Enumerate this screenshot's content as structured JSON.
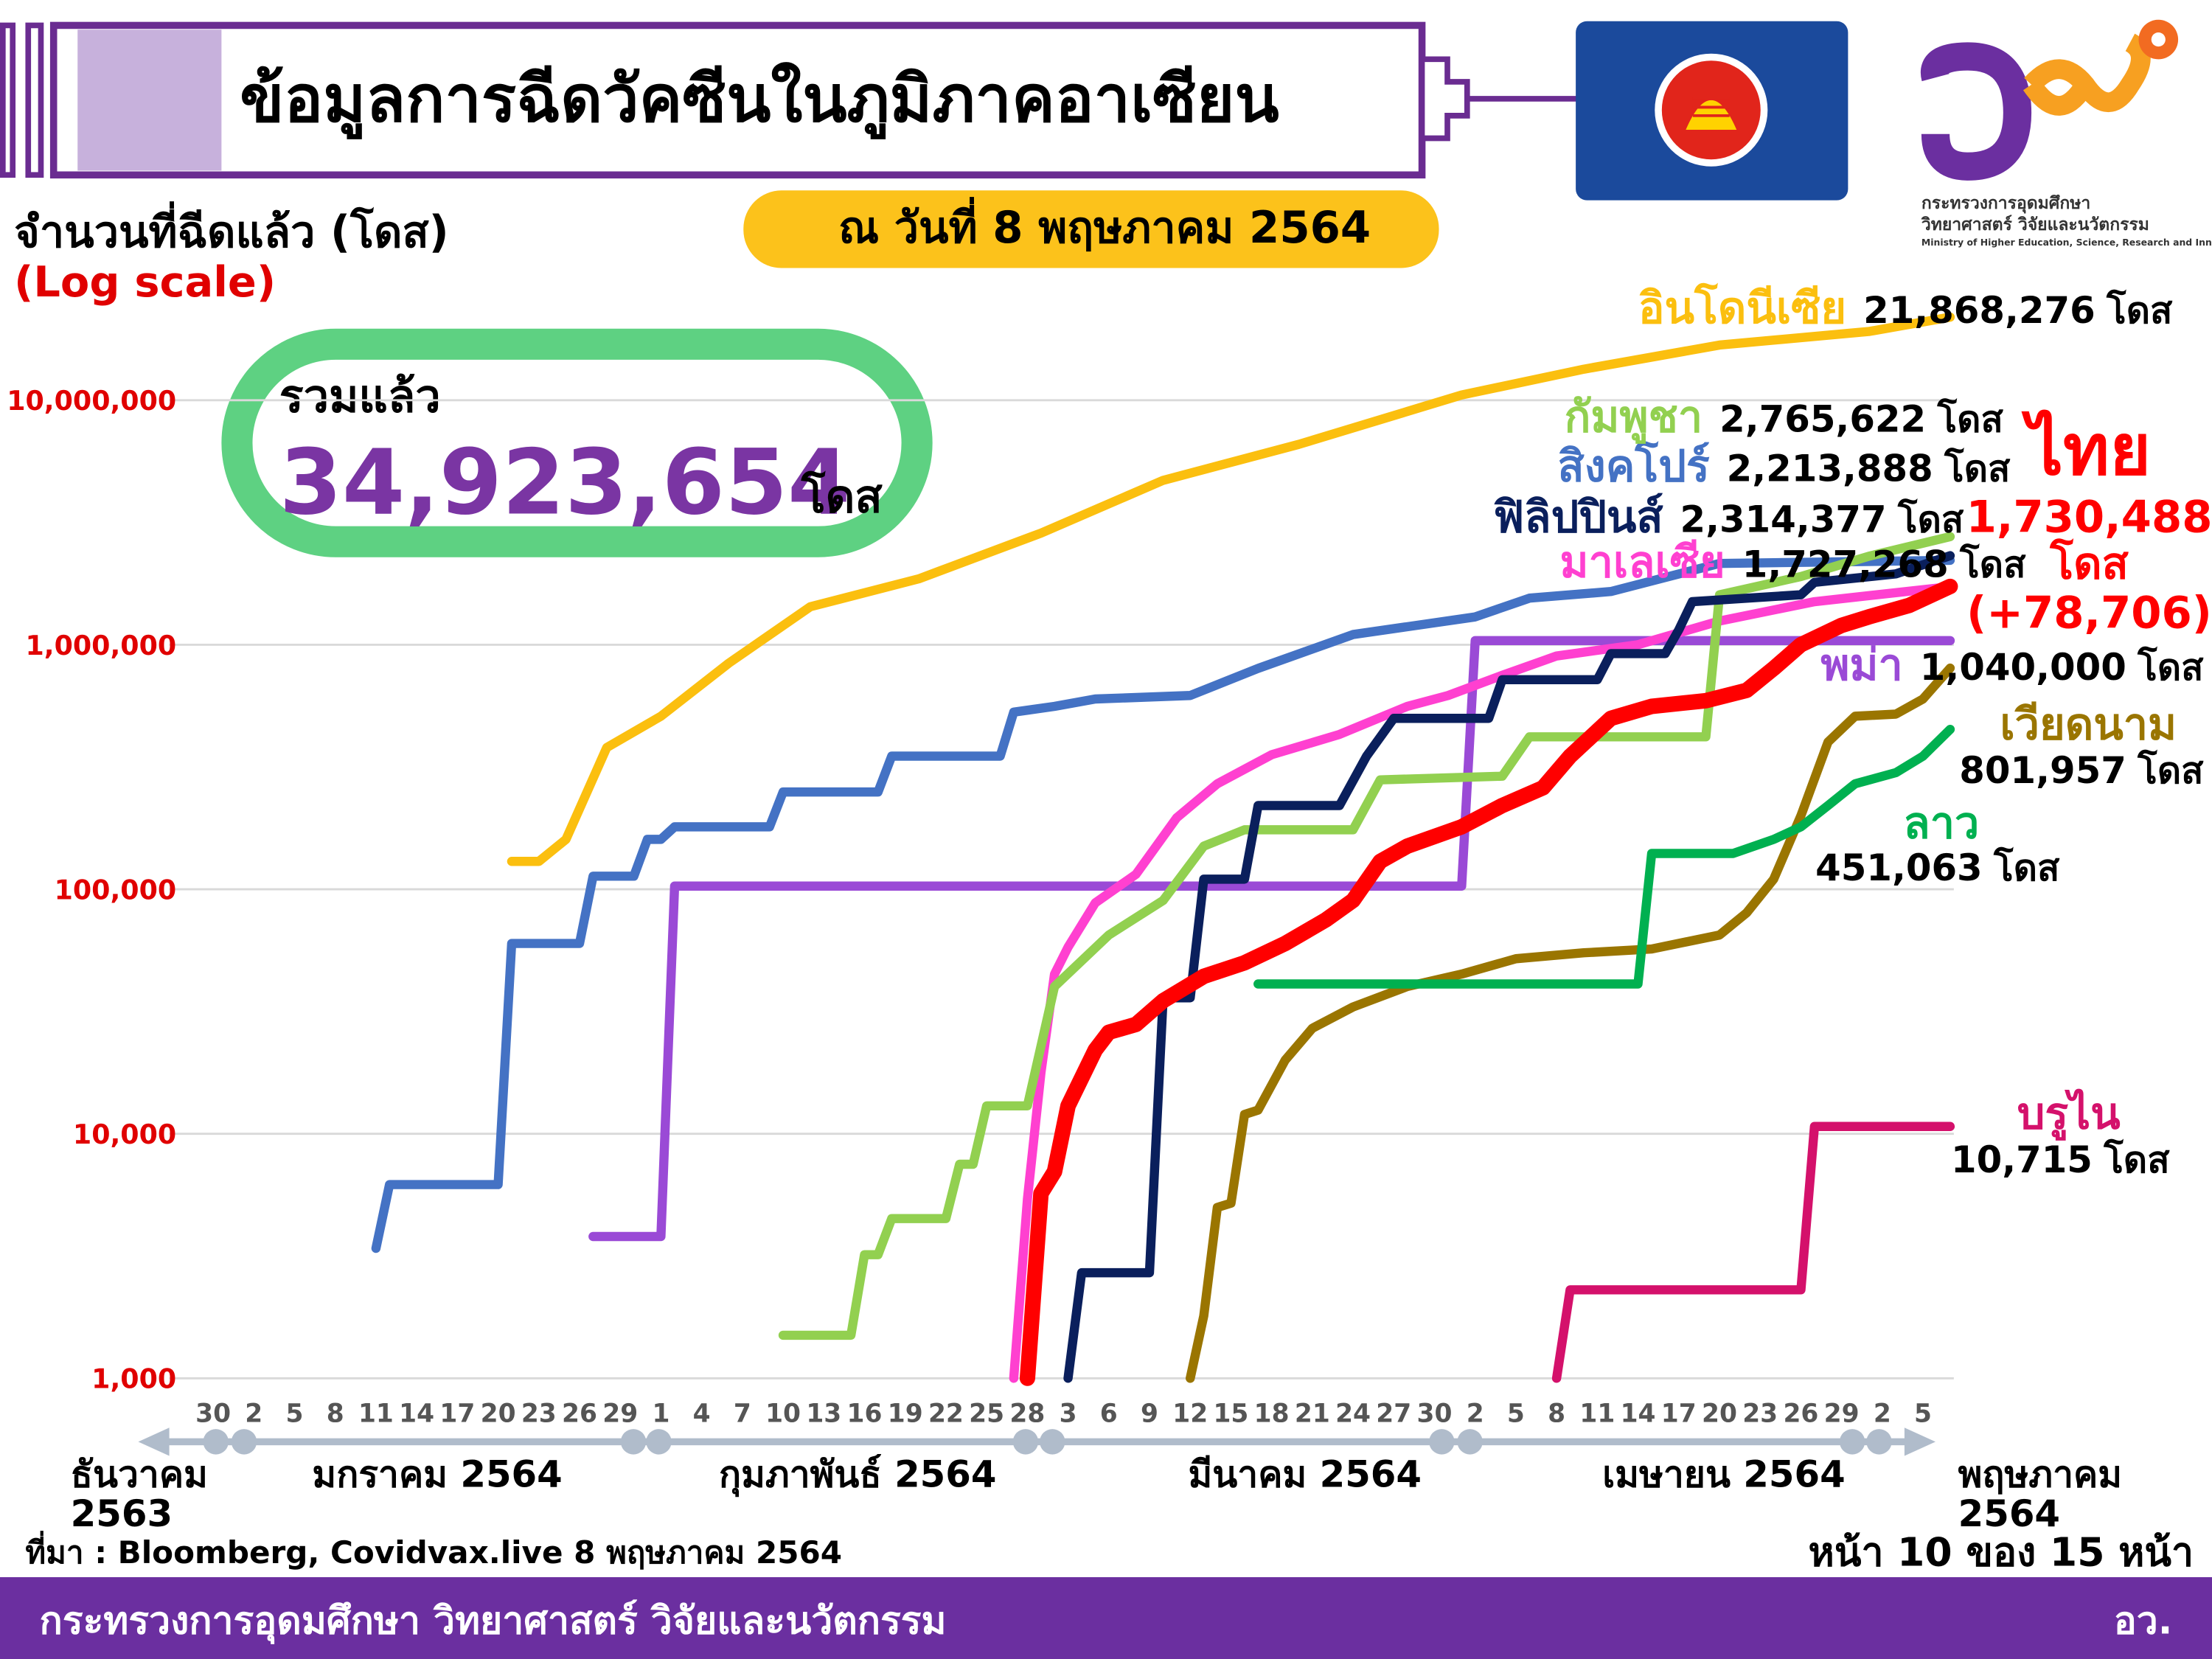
{
  "header": {
    "title": "ข้อมูลการฉีดวัคซีนในภูมิภาคอาเซียน",
    "date": "ณ วันที่ 8 พฤษภาคม 2564",
    "logo_lines": [
      "กระทรวงการอุดมศึกษา",
      "วิทยาศาสตร์ วิจัยและนวัตกรรม",
      "Ministry of Higher Education, Science, Research and Innovation"
    ]
  },
  "summary": {
    "label": "รวมแล้ว",
    "value_label": "34,923,654",
    "unit": "โดส"
  },
  "footer": {
    "source": "ที่มา : Bloomberg, Covidvax.live 8 พฤษภาคม 2564",
    "page": "หน้า 10 ของ 15 หน้า",
    "ministry": "กระทรวงการอุดมศึกษา วิทยาศาสตร์ วิจัยและนวัตกรรม",
    "short": "อว."
  },
  "chart_data": {
    "type": "line",
    "y_label": "จำนวนที่ฉีดแล้ว (โดส)",
    "scale_note": "(Log scale)",
    "log_scale": true,
    "grid": true,
    "unit": "โดส",
    "ylim": [
      1000,
      30000000
    ],
    "yticks": [
      {
        "value": 1000,
        "label": "1,000"
      },
      {
        "value": 10000,
        "label": "10,000"
      },
      {
        "value": 100000,
        "label": "100,000"
      },
      {
        "value": 1000000,
        "label": "1,000,000"
      },
      {
        "value": 10000000,
        "label": "10,000,000"
      }
    ],
    "xlim": [
      "2020-12-25",
      "2021-05-08"
    ],
    "xticks": [
      {
        "value": "2020-12-30",
        "label": "30"
      },
      {
        "value": "2021-01-02",
        "label": "2"
      },
      {
        "value": "2021-01-05",
        "label": "5"
      },
      {
        "value": "2021-01-08",
        "label": "8"
      },
      {
        "value": "2021-01-11",
        "label": "11"
      },
      {
        "value": "2021-01-14",
        "label": "14"
      },
      {
        "value": "2021-01-17",
        "label": "17"
      },
      {
        "value": "2021-01-20",
        "label": "20"
      },
      {
        "value": "2021-01-23",
        "label": "23"
      },
      {
        "value": "2021-01-26",
        "label": "26"
      },
      {
        "value": "2021-01-29",
        "label": "29"
      },
      {
        "value": "2021-02-01",
        "label": "1"
      },
      {
        "value": "2021-02-04",
        "label": "4"
      },
      {
        "value": "2021-02-07",
        "label": "7"
      },
      {
        "value": "2021-02-10",
        "label": "10"
      },
      {
        "value": "2021-02-13",
        "label": "13"
      },
      {
        "value": "2021-02-16",
        "label": "16"
      },
      {
        "value": "2021-02-19",
        "label": "19"
      },
      {
        "value": "2021-02-22",
        "label": "22"
      },
      {
        "value": "2021-02-25",
        "label": "25"
      },
      {
        "value": "2021-02-28",
        "label": "28"
      },
      {
        "value": "2021-03-03",
        "label": "3"
      },
      {
        "value": "2021-03-06",
        "label": "6"
      },
      {
        "value": "2021-03-09",
        "label": "9"
      },
      {
        "value": "2021-03-12",
        "label": "12"
      },
      {
        "value": "2021-03-15",
        "label": "15"
      },
      {
        "value": "2021-03-18",
        "label": "18"
      },
      {
        "value": "2021-03-21",
        "label": "21"
      },
      {
        "value": "2021-03-24",
        "label": "24"
      },
      {
        "value": "2021-03-27",
        "label": "27"
      },
      {
        "value": "2021-03-30",
        "label": "30"
      },
      {
        "value": "2021-04-02",
        "label": "2"
      },
      {
        "value": "2021-04-05",
        "label": "5"
      },
      {
        "value": "2021-04-08",
        "label": "8"
      },
      {
        "value": "2021-04-11",
        "label": "11"
      },
      {
        "value": "2021-04-14",
        "label": "14"
      },
      {
        "value": "2021-04-17",
        "label": "17"
      },
      {
        "value": "2021-04-20",
        "label": "20"
      },
      {
        "value": "2021-04-23",
        "label": "23"
      },
      {
        "value": "2021-04-26",
        "label": "26"
      },
      {
        "value": "2021-04-29",
        "label": "29"
      },
      {
        "value": "2021-05-02",
        "label": "2"
      },
      {
        "value": "2021-05-05",
        "label": "5"
      }
    ],
    "months": [
      [
        "ธันวาคม",
        "2563"
      ],
      [
        "มกราคม 2564"
      ],
      [
        "กุมภาพันธ์ 2564"
      ],
      [
        "มีนาคม 2564"
      ],
      [
        "เมษายน 2564"
      ],
      [
        "พฤษภาคม",
        "2564"
      ]
    ],
    "series": [
      {
        "name": "อินโดนีเซีย",
        "color": "#fbbf0f",
        "x": [
          "2021-01-21",
          "2021-01-23",
          "2021-01-25",
          "2021-01-28",
          "2021-02-01",
          "2021-02-06",
          "2021-02-12",
          "2021-02-20",
          "2021-03-01",
          "2021-03-10",
          "2021-03-20",
          "2021-04-01",
          "2021-04-10",
          "2021-04-20",
          "2021-05-01",
          "2021-05-07"
        ],
        "values": [
          130000,
          130000,
          160000,
          380000,
          510000,
          840000,
          1430000,
          1860000,
          2860000,
          4700000,
          6600000,
          10500000,
          13400000,
          16800000,
          19100000,
          21868276
        ],
        "value_labels": [
          null,
          null,
          null,
          null,
          null,
          null,
          null,
          null,
          null,
          null,
          null,
          null,
          null,
          null,
          null,
          "21,868,276"
        ]
      },
      {
        "name": "สิงคโปร์",
        "color": "#4472c4",
        "x": [
          "2021-01-11",
          "2021-01-12",
          "2021-01-20",
          "2021-01-21",
          "2021-01-26",
          "2021-01-27",
          "2021-01-30",
          "2021-01-31",
          "2021-02-01",
          "2021-02-02",
          "2021-02-09",
          "2021-02-10",
          "2021-02-17",
          "2021-02-18",
          "2021-02-26",
          "2021-02-27",
          "2021-03-02",
          "2021-03-05",
          "2021-03-12",
          "2021-03-17",
          "2021-03-24",
          "2021-04-02",
          "2021-04-06",
          "2021-04-12",
          "2021-04-20",
          "2021-05-07"
        ],
        "values": [
          3400,
          6200,
          6200,
          60000,
          60000,
          113000,
          113000,
          160000,
          160000,
          180000,
          180000,
          250000,
          250000,
          350000,
          350000,
          530000,
          560000,
          600000,
          620000,
          800000,
          1100000,
          1300000,
          1550000,
          1650000,
          2150000,
          2213888
        ],
        "value_labels": [
          null,
          null,
          null,
          null,
          null,
          null,
          null,
          null,
          null,
          null,
          null,
          null,
          null,
          null,
          null,
          null,
          null,
          null,
          null,
          null,
          null,
          null,
          null,
          null,
          null,
          "2,213,888"
        ]
      },
      {
        "name": "พม่า",
        "color": "#9a4ad6",
        "x": [
          "2021-01-27",
          "2021-02-01",
          "2021-02-02",
          "2021-04-01",
          "2021-04-02",
          "2021-05-07"
        ],
        "values": [
          3800,
          3800,
          103000,
          103000,
          1040000,
          1040000
        ],
        "value_labels": [
          null,
          null,
          null,
          null,
          null,
          "1,040,000"
        ]
      },
      {
        "name": "มาเลเซีย",
        "color": "#ff40d0",
        "x": [
          "2021-02-27",
          "2021-02-28",
          "2021-03-01",
          "2021-03-02",
          "2021-03-03",
          "2021-03-05",
          "2021-03-08",
          "2021-03-11",
          "2021-03-14",
          "2021-03-18",
          "2021-03-23",
          "2021-03-28",
          "2021-03-31",
          "2021-04-04",
          "2021-04-08",
          "2021-04-14",
          "2021-04-20",
          "2021-04-27",
          "2021-05-07"
        ],
        "values": [
          1000,
          5400,
          17800,
          45000,
          58000,
          88000,
          115000,
          196000,
          270000,
          355000,
          430000,
          560000,
          620000,
          750000,
          900000,
          1000000,
          1250000,
          1500000,
          1727268
        ],
        "value_labels": [
          null,
          null,
          null,
          null,
          null,
          null,
          null,
          null,
          null,
          null,
          null,
          null,
          null,
          null,
          null,
          null,
          null,
          null,
          "1,727,268"
        ]
      },
      {
        "name": "กัมพูชา",
        "color": "#92d050",
        "x": [
          "2021-02-10",
          "2021-02-15",
          "2021-02-16",
          "2021-02-17",
          "2021-02-18",
          "2021-02-22",
          "2021-02-23",
          "2021-02-24",
          "2021-02-25",
          "2021-02-28",
          "2021-03-02",
          "2021-03-06",
          "2021-03-10",
          "2021-03-13",
          "2021-03-16",
          "2021-03-24",
          "2021-03-26",
          "2021-04-04",
          "2021-04-06",
          "2021-04-19",
          "2021-04-20",
          "2021-04-26",
          "2021-05-01",
          "2021-05-07"
        ],
        "values": [
          1500,
          1500,
          3200,
          3200,
          4500,
          4500,
          7500,
          7500,
          13000,
          13000,
          40000,
          65000,
          90000,
          150000,
          175000,
          175000,
          280000,
          290000,
          420000,
          420000,
          1600000,
          1900000,
          2300000,
          2765622
        ],
        "value_labels": [
          null,
          null,
          null,
          null,
          null,
          null,
          null,
          null,
          null,
          null,
          null,
          null,
          null,
          null,
          null,
          null,
          null,
          null,
          null,
          null,
          null,
          null,
          null,
          "2,765,622"
        ]
      },
      {
        "name": "เวียดนาม",
        "color": "#9a7500",
        "x": [
          "2021-03-12",
          "2021-03-13",
          "2021-03-14",
          "2021-03-15",
          "2021-03-16",
          "2021-03-17",
          "2021-03-19",
          "2021-03-21",
          "2021-03-24",
          "2021-03-28",
          "2021-04-01",
          "2021-04-05",
          "2021-04-10",
          "2021-04-15",
          "2021-04-20",
          "2021-04-22",
          "2021-04-24",
          "2021-04-26",
          "2021-04-28",
          "2021-04-30",
          "2021-05-03",
          "2021-05-05",
          "2021-05-07"
        ],
        "values": [
          1000,
          1800,
          5000,
          5200,
          12000,
          12500,
          20000,
          27000,
          33000,
          40000,
          45000,
          52000,
          55000,
          57000,
          65000,
          80000,
          110000,
          200000,
          400000,
          510000,
          520000,
          600000,
          801957
        ],
        "value_labels": [
          null,
          null,
          null,
          null,
          null,
          null,
          null,
          null,
          null,
          null,
          null,
          null,
          null,
          null,
          null,
          null,
          null,
          null,
          null,
          null,
          null,
          null,
          "801,957"
        ]
      },
      {
        "name": "ลาว",
        "color": "#00b050",
        "x": [
          "2021-03-17",
          "2021-04-14",
          "2021-04-15",
          "2021-04-21",
          "2021-04-24",
          "2021-04-26",
          "2021-04-28",
          "2021-04-30",
          "2021-05-03",
          "2021-05-05",
          "2021-05-07"
        ],
        "values": [
          41000,
          41000,
          140000,
          140000,
          160000,
          180000,
          220000,
          270000,
          300000,
          350000,
          451063
        ],
        "value_labels": [
          null,
          null,
          null,
          null,
          null,
          null,
          null,
          null,
          null,
          null,
          "451,063"
        ]
      },
      {
        "name": "บรูไน",
        "color": "#d4116b",
        "x": [
          "2021-04-08",
          "2021-04-09",
          "2021-04-26",
          "2021-04-27",
          "2021-05-07"
        ],
        "values": [
          1000,
          2300,
          2300,
          10715,
          10715
        ],
        "value_labels": [
          null,
          null,
          null,
          null,
          "10,715"
        ]
      },
      {
        "name": "ฟิลิปปินส์",
        "color": "#0a1f5c",
        "x": [
          "2021-03-03",
          "2021-03-04",
          "2021-03-09",
          "2021-03-10",
          "2021-03-12",
          "2021-03-13",
          "2021-03-16",
          "2021-03-17",
          "2021-03-23",
          "2021-03-25",
          "2021-03-27",
          "2021-04-03",
          "2021-04-04",
          "2021-04-11",
          "2021-04-12",
          "2021-04-16",
          "2021-04-17",
          "2021-04-18",
          "2021-04-26",
          "2021-04-27",
          "2021-05-03",
          "2021-05-07"
        ],
        "values": [
          1000,
          2700,
          2700,
          36000,
          36000,
          110000,
          110000,
          220000,
          220000,
          350000,
          500000,
          500000,
          720000,
          720000,
          920000,
          920000,
          1150000,
          1500000,
          1600000,
          1800000,
          1950000,
          2314377
        ],
        "value_labels": [
          null,
          null,
          null,
          null,
          null,
          null,
          null,
          null,
          null,
          null,
          null,
          null,
          null,
          null,
          null,
          null,
          null,
          null,
          null,
          null,
          null,
          "2,314,377"
        ]
      },
      {
        "name": "ไทย",
        "color": "#ff0000",
        "change_label": "(+78,706)",
        "x": [
          "2021-02-28",
          "2021-03-01",
          "2021-03-02",
          "2021-03-03",
          "2021-03-05",
          "2021-03-06",
          "2021-03-08",
          "2021-03-10",
          "2021-03-13",
          "2021-03-16",
          "2021-03-19",
          "2021-03-22",
          "2021-03-24",
          "2021-03-26",
          "2021-03-28",
          "2021-04-01",
          "2021-04-04",
          "2021-04-07",
          "2021-04-09",
          "2021-04-12",
          "2021-04-15",
          "2021-04-19",
          "2021-04-22",
          "2021-04-24",
          "2021-04-26",
          "2021-04-29",
          "2021-05-01",
          "2021-05-04",
          "2021-05-07"
        ],
        "values": [
          1000,
          5700,
          7000,
          13000,
          22000,
          26000,
          28000,
          35000,
          44000,
          50000,
          60000,
          75000,
          90000,
          130000,
          150000,
          180000,
          220000,
          260000,
          350000,
          500000,
          560000,
          590000,
          650000,
          800000,
          1000000,
          1200000,
          1300000,
          1450000,
          1730488
        ],
        "value_labels": [
          null,
          null,
          null,
          null,
          null,
          null,
          null,
          null,
          null,
          null,
          null,
          null,
          null,
          null,
          null,
          null,
          null,
          null,
          null,
          null,
          null,
          null,
          null,
          null,
          null,
          null,
          null,
          null,
          "1,730,488"
        ]
      }
    ]
  }
}
